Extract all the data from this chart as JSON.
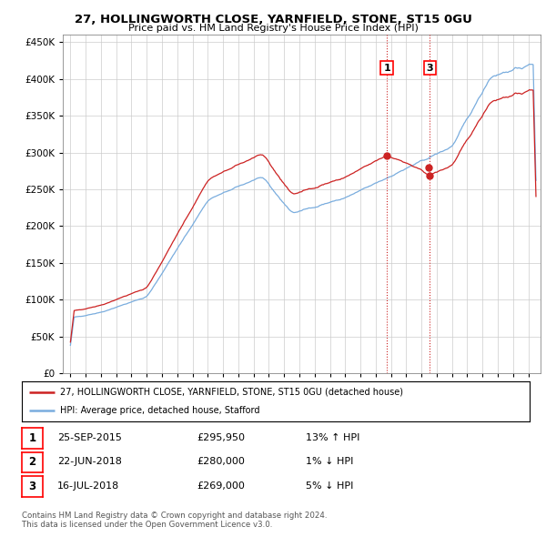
{
  "title": "27, HOLLINGWORTH CLOSE, YARNFIELD, STONE, ST15 0GU",
  "subtitle": "Price paid vs. HM Land Registry's House Price Index (HPI)",
  "legend_line1": "27, HOLLINGWORTH CLOSE, YARNFIELD, STONE, ST15 0GU (detached house)",
  "legend_line2": "HPI: Average price, detached house, Stafford",
  "footer1": "Contains HM Land Registry data © Crown copyright and database right 2024.",
  "footer2": "This data is licensed under the Open Government Licence v3.0.",
  "sale_prices": [
    295950,
    280000,
    269000
  ],
  "sale_years": [
    2015.73,
    2018.47,
    2018.54
  ],
  "table_rows": [
    [
      "1",
      "25-SEP-2015",
      "£295,950",
      "13% ↑ HPI"
    ],
    [
      "2",
      "22-JUN-2018",
      "£280,000",
      "1% ↓ HPI"
    ],
    [
      "3",
      "16-JUL-2018",
      "£269,000",
      "5% ↓ HPI"
    ]
  ],
  "hpi_color": "#7aadde",
  "price_color": "#cc2222",
  "background_color": "#ffffff",
  "grid_color": "#cccccc",
  "ylim": [
    0,
    460000
  ],
  "xlim_start": 1994.5,
  "xlim_end": 2025.8
}
